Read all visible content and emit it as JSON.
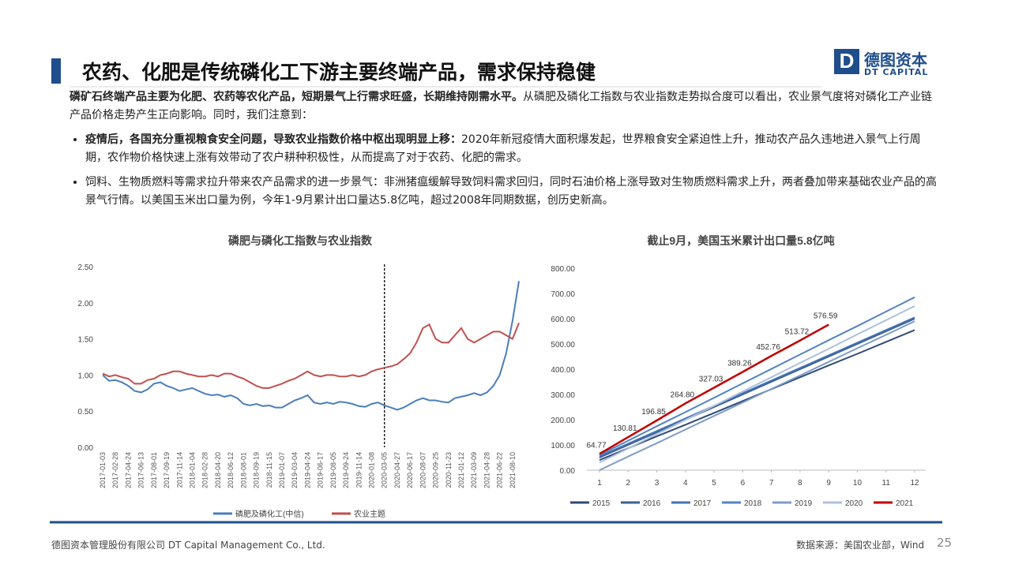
{
  "header": {
    "title": "农药、化肥是传统磷化工下游主要终端产品，需求保持稳健",
    "logo_cn": "德图资本",
    "logo_en": "DT CAPITAL"
  },
  "body": {
    "intro_bold": "磷矿石终端产品主要为化肥、农药等农化产品，短期景气上行需求旺盛，长期维持刚需水平。",
    "intro_text": "从磷肥及磷化工指数与农业指数走势拟合度可以看出，农业景气度将对磷化工产业链产品价格走势产生正向影响。同时，我们注意到：",
    "bullets": [
      {
        "bold": "疫情后，各国充分重视粮食安全问题，导致农业指数价格中枢出现明显上移：",
        "text": "2020年新冠疫情大面积爆发起，世界粮食安全紧迫性上升，推动农产品久违地进入景气上行周期，农作物价格快速上涨有效带动了农户耕种积极性，从而提高了对于农药、化肥的需求。"
      },
      {
        "text": "饲料、生物质燃料等需求拉升带来农产品需求的进一步景气：非洲猪瘟缓解导致饲料需求回归，同时石油价格上涨导致对生物质燃料需求上升，两者叠加带来基础农业产品的高景气行情。以美国玉米出口量为例，今年1-9月累计出口量达5.8亿吨，超过2008年同期数据，创历史新高。"
      }
    ]
  },
  "chart_data": [
    {
      "type": "line",
      "title": "磷肥与磷化工指数与农业指数",
      "categories": [
        "2017-01-03",
        null,
        "2017-02-28",
        null,
        "2017-04-24",
        null,
        "2017-06-13",
        null,
        "2017-08-01",
        null,
        "2017-09-19",
        null,
        "2017-11-14",
        null,
        "2018-01-04",
        null,
        "2018-02-28",
        null,
        "2018-04-20",
        null,
        "2018-06-12",
        null,
        "2018-08-01",
        null,
        "2018-09-19",
        null,
        "2018-11-15",
        null,
        "2019-01-07",
        null,
        "2019-03-04",
        null,
        "2019-04-24",
        null,
        "2019-06-17",
        null,
        "2019-08-05",
        null,
        "2019-09-24",
        null,
        "2019-11-14",
        null,
        "2020-01-08",
        null,
        "2020-03-05",
        null,
        "2020-04-27",
        null,
        "2020-06-17",
        null,
        "2020-08-07",
        null,
        "2020-09-25",
        null,
        "2020-11-23",
        null,
        "2021-01-12",
        null,
        "2021-03-09",
        null,
        "2021-04-28",
        null,
        "2021-06-22",
        null,
        "2021-08-10",
        null
      ],
      "series": [
        {
          "name": "磷肥及磷化工(中信)",
          "color": "#4a7ebb",
          "values": [
            1.0,
            0.92,
            0.93,
            0.9,
            0.85,
            0.78,
            0.76,
            0.8,
            0.88,
            0.9,
            0.85,
            0.82,
            0.78,
            0.8,
            0.82,
            0.78,
            0.74,
            0.72,
            0.73,
            0.7,
            0.72,
            0.68,
            0.6,
            0.58,
            0.6,
            0.57,
            0.58,
            0.55,
            0.55,
            0.6,
            0.65,
            0.68,
            0.72,
            0.62,
            0.6,
            0.62,
            0.6,
            0.63,
            0.62,
            0.6,
            0.57,
            0.56,
            0.6,
            0.62,
            0.58,
            0.55,
            0.52,
            0.55,
            0.6,
            0.65,
            0.68,
            0.65,
            0.65,
            0.63,
            0.62,
            0.68,
            0.7,
            0.72,
            0.75,
            0.72,
            0.76,
            0.85,
            1.0,
            1.3,
            1.75,
            2.3
          ]
        },
        {
          "name": "农业主题",
          "color": "#c0504d",
          "values": [
            1.02,
            0.98,
            1.0,
            0.97,
            0.95,
            0.88,
            0.88,
            0.93,
            0.95,
            1.0,
            1.02,
            1.05,
            1.05,
            1.02,
            1.0,
            0.98,
            0.98,
            1.0,
            0.98,
            1.02,
            1.02,
            0.98,
            0.95,
            0.9,
            0.85,
            0.82,
            0.82,
            0.85,
            0.88,
            0.92,
            0.95,
            1.0,
            1.05,
            1.0,
            0.98,
            1.0,
            1.0,
            0.98,
            0.98,
            1.0,
            0.98,
            1.0,
            1.05,
            1.08,
            1.1,
            1.12,
            1.15,
            1.22,
            1.3,
            1.45,
            1.65,
            1.7,
            1.5,
            1.45,
            1.45,
            1.55,
            1.65,
            1.5,
            1.45,
            1.5,
            1.55,
            1.6,
            1.6,
            1.55,
            1.5,
            1.72
          ]
        }
      ],
      "ylim": [
        0,
        2.5
      ],
      "yticks": [
        {
          "value": 0,
          "label": "0.00"
        },
        {
          "value": 0.5,
          "label": "0.50"
        },
        {
          "value": 1,
          "label": "1.00"
        },
        {
          "value": 1.5,
          "label": "1.50"
        },
        {
          "value": 2,
          "label": "2.00"
        },
        {
          "value": 2.5,
          "label": "2.50"
        }
      ],
      "vline": "2020-03-05",
      "grid": false,
      "legend": "bottom"
    },
    {
      "type": "line",
      "title": "截止9月，美国玉米累计出口量5.8亿吨",
      "x": [
        1,
        2,
        3,
        4,
        5,
        6,
        7,
        8,
        9,
        10,
        11,
        12
      ],
      "xlim": [
        1,
        12
      ],
      "xticks": [
        1,
        2,
        3,
        4,
        5,
        6,
        7,
        8,
        9,
        10,
        11,
        12
      ],
      "ylim": [
        0,
        800
      ],
      "yticks": [
        {
          "value": 0,
          "label": "0.00"
        },
        {
          "value": 100,
          "label": "100.00"
        },
        {
          "value": 200,
          "label": "200.00"
        },
        {
          "value": 300,
          "label": "300.00"
        },
        {
          "value": 400,
          "label": "400.00"
        },
        {
          "value": 500,
          "label": "500.00"
        },
        {
          "value": 600,
          "label": "600.00"
        },
        {
          "value": 700,
          "label": "700.00"
        },
        {
          "value": 800,
          "label": "800.00"
        }
      ],
      "series": [
        {
          "name": "2015",
          "color": "#2f4a78",
          "values": [
            40,
            87,
            134,
            180,
            227,
            274,
            321,
            368,
            415,
            461,
            508,
            555
          ]
        },
        {
          "name": "2016",
          "color": "#3a5f93",
          "values": [
            50,
            100,
            150,
            200,
            250,
            300,
            350,
            400,
            450,
            500,
            550,
            600
          ]
        },
        {
          "name": "2017",
          "color": "#4472b0",
          "values": [
            55,
            105,
            155,
            205,
            255,
            305,
            355,
            405,
            455,
            505,
            555,
            605
          ]
        },
        {
          "name": "2018",
          "color": "#5384c0",
          "values": [
            60,
            117,
            174,
            230,
            287,
            344,
            401,
            458,
            515,
            571,
            628,
            685
          ]
        },
        {
          "name": "2019",
          "color": "#7f9cc8",
          "values": [
            0,
            54,
            107,
            161,
            215,
            268,
            322,
            375,
            429,
            483,
            536,
            590
          ]
        },
        {
          "name": "2020",
          "color": "#adc0de",
          "values": [
            30,
            86,
            143,
            199,
            255,
            312,
            368,
            425,
            481,
            538,
            594,
            650
          ]
        },
        {
          "name": "2021",
          "color": "#c00000",
          "values": [
            64.77,
            130.81,
            196.85,
            264.8,
            327.03,
            389.26,
            452.76,
            513.72,
            576.59,
            null,
            null,
            null
          ],
          "value_labels": [
            "64.77",
            "130.81",
            "196.85",
            "264.80",
            "327.03",
            "389.26",
            "452.76",
            "513.72",
            "576.59",
            null,
            null,
            null
          ]
        }
      ],
      "grid": false,
      "legend": "bottom"
    }
  ],
  "footer": {
    "company": "德图资本管理股份有限公司 DT Capital Management Co., Ltd.",
    "source": "数据来源：美国农业部，Wind",
    "page": "25"
  }
}
